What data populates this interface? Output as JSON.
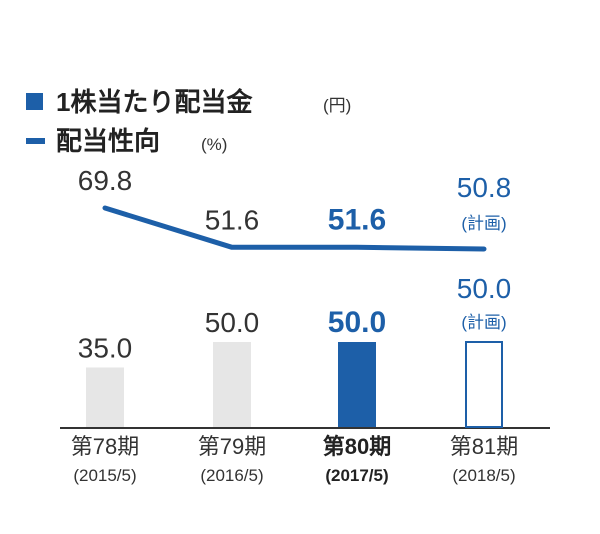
{
  "chart_data": {
    "type": "bar+line",
    "categories": [
      {
        "label": "第78期",
        "sub": "(2015/5)"
      },
      {
        "label": "第79期",
        "sub": "(2016/5)"
      },
      {
        "label": "第80期",
        "sub": "(2017/5)"
      },
      {
        "label": "第81期",
        "sub": "(2018/5)"
      }
    ],
    "highlight_index": 2,
    "plan_index": 3,
    "plan_note": "(計画)",
    "bar_series": {
      "name": "1株当たり配当金",
      "unit": "(円)",
      "values": [
        35.0,
        50.0,
        50.0,
        50.0
      ],
      "labels": [
        "35.0",
        "50.0",
        "50.0",
        "50.0"
      ]
    },
    "line_series": {
      "name": "配当性向",
      "unit": "(%)",
      "values": [
        69.8,
        51.6,
        51.6,
        50.8
      ],
      "labels": [
        "69.8",
        "51.6",
        "51.6",
        "50.8"
      ]
    },
    "colors": {
      "accent": "#1d5fa8",
      "bar_gray": "#e6e6e6",
      "axis": "#333333"
    }
  }
}
